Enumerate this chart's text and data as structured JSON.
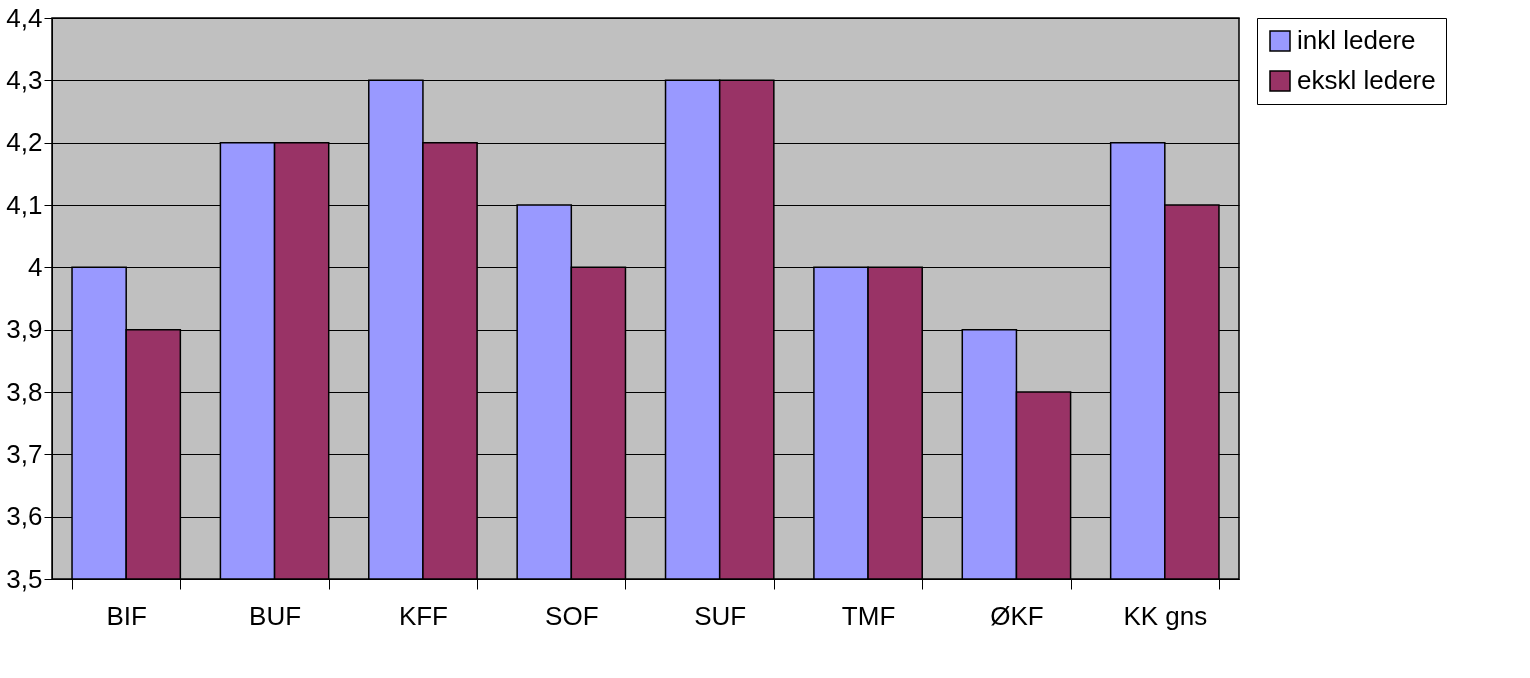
{
  "chart_data": {
    "type": "bar",
    "categories": [
      "BIF",
      "BUF",
      "KFF",
      "SOF",
      "SUF",
      "TMF",
      "ØKF",
      "KK gns"
    ],
    "series": [
      {
        "name": "inkl ledere",
        "color": "#9999ff",
        "values": [
          4.0,
          4.2,
          4.3,
          4.1,
          4.3,
          4.0,
          3.9,
          4.2
        ]
      },
      {
        "name": "ekskl ledere",
        "color": "#993366",
        "values": [
          3.9,
          4.2,
          4.2,
          4.0,
          4.3,
          4.0,
          3.8,
          4.1
        ]
      }
    ],
    "ylim": [
      3.5,
      4.4
    ],
    "yticks": [
      {
        "value": 3.5,
        "label": "3,5"
      },
      {
        "value": 3.6,
        "label": "3,6"
      },
      {
        "value": 3.7,
        "label": "3,7"
      },
      {
        "value": 3.8,
        "label": "3,8"
      },
      {
        "value": 3.9,
        "label": "3,9"
      },
      {
        "value": 4.0,
        "label": "4"
      },
      {
        "value": 4.1,
        "label": "4,1"
      },
      {
        "value": 4.2,
        "label": "4,2"
      },
      {
        "value": 4.3,
        "label": "4,3"
      },
      {
        "value": 4.4,
        "label": "4,4"
      }
    ],
    "grid": "y",
    "legend": "right"
  }
}
